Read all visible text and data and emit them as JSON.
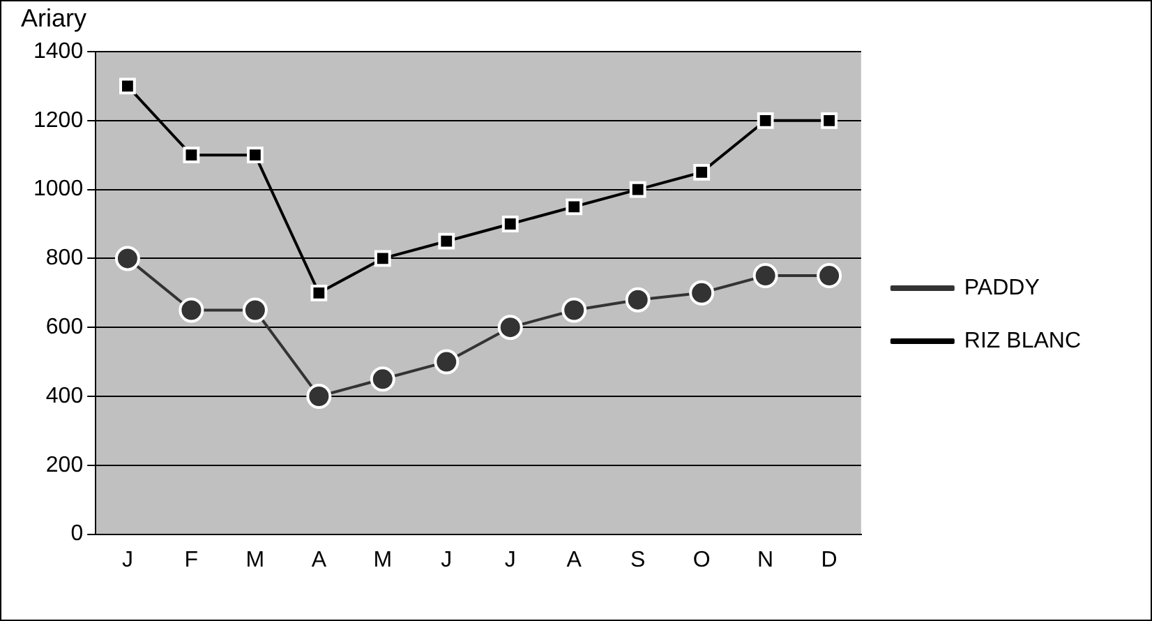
{
  "chart_data": {
    "type": "line",
    "ylabel": "Ariary",
    "categories": [
      "J",
      "F",
      "M",
      "A",
      "M",
      "J",
      "J",
      "A",
      "S",
      "O",
      "N",
      "D"
    ],
    "series": [
      {
        "name": "PADDY",
        "color": "#333333",
        "marker": "circle",
        "values": [
          800,
          650,
          650,
          400,
          450,
          500,
          600,
          650,
          680,
          700,
          750,
          750
        ]
      },
      {
        "name": "RIZ BLANC",
        "color": "#000000",
        "marker": "square",
        "values": [
          1300,
          1100,
          1100,
          700,
          800,
          850,
          900,
          950,
          1000,
          1050,
          1200,
          1200
        ]
      }
    ],
    "ylim": [
      0,
      1400
    ],
    "yticks": [
      0,
      200,
      400,
      600,
      800,
      1000,
      1200,
      1400
    ],
    "grid": "y",
    "legend": "right",
    "line_style": "solid"
  }
}
